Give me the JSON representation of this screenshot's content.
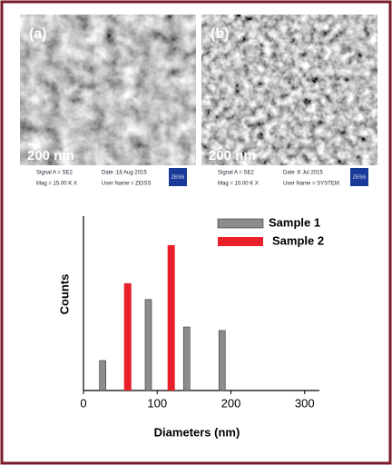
{
  "panels": [
    {
      "label": "(a)",
      "scale": "200 nm",
      "info": [
        "Signal A = SE2",
        "Date :18 Aug 2015",
        "Mag =  15.00 K X",
        "User Name = ZEISS"
      ],
      "logo": "ZEISS"
    },
    {
      "label": "(b)",
      "scale": "200 nm",
      "info": [
        "Signal A = SE2",
        "Date :6 Jul 2015",
        "Mag =  10.00 K X",
        "User Name = SYSTEM"
      ],
      "logo": "ZEISS"
    }
  ],
  "chart_data": {
    "type": "bar",
    "xlabel": "Diameters (nm)",
    "ylabel": "Counts",
    "xlim": [
      0,
      320
    ],
    "xticks": [
      0,
      100,
      200,
      300
    ],
    "ylim": [
      0,
      3.43
    ],
    "legend": "upper right",
    "series": [
      {
        "name": "Sample 1",
        "color": "#8c8c8c",
        "x": [
          26,
          88,
          140,
          188
        ],
        "values": [
          0.59,
          1.79,
          1.25,
          1.18
        ]
      },
      {
        "name": "Sample 2",
        "color": "#e8202a",
        "x": [
          60,
          119
        ],
        "values": [
          2.11,
          2.86
        ]
      }
    ]
  }
}
